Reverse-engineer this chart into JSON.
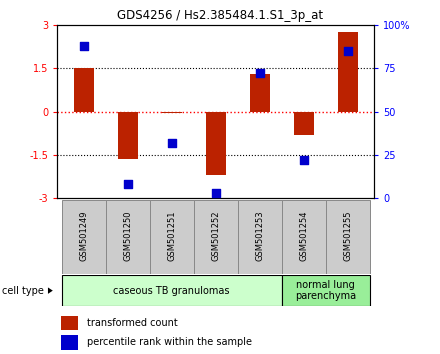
{
  "title": "GDS4256 / Hs2.385484.1.S1_3p_at",
  "samples": [
    "GSM501249",
    "GSM501250",
    "GSM501251",
    "GSM501252",
    "GSM501253",
    "GSM501254",
    "GSM501255"
  ],
  "transformed_counts": [
    1.5,
    -1.65,
    -0.05,
    -2.2,
    1.3,
    -0.8,
    2.75
  ],
  "percentile_ranks": [
    88,
    8,
    32,
    3,
    72,
    22,
    85
  ],
  "bar_color": "#bb2200",
  "dot_color": "#0000cc",
  "ylim_left": [
    -3,
    3
  ],
  "ylim_right": [
    0,
    100
  ],
  "yticks_left": [
    -3,
    -1.5,
    0,
    1.5,
    3
  ],
  "ytick_labels_left": [
    "-3",
    "-1.5",
    "0",
    "1.5",
    "3"
  ],
  "yticks_right": [
    0,
    25,
    50,
    75,
    100
  ],
  "ytick_labels_right": [
    "0",
    "25",
    "50",
    "75",
    "100%"
  ],
  "cell_types": [
    {
      "label": "caseous TB granulomas",
      "start": 0,
      "end": 4,
      "color": "#ccffcc"
    },
    {
      "label": "normal lung\nparenchyma",
      "start": 5,
      "end": 6,
      "color": "#99ee99"
    }
  ],
  "cell_type_label": "cell type",
  "legend_items": [
    {
      "color": "#bb2200",
      "label": "transformed count"
    },
    {
      "color": "#0000cc",
      "label": "percentile rank within the sample"
    }
  ],
  "bar_width": 0.45,
  "dot_size": 28,
  "label_bg": "#cccccc",
  "label_edge": "#888888"
}
